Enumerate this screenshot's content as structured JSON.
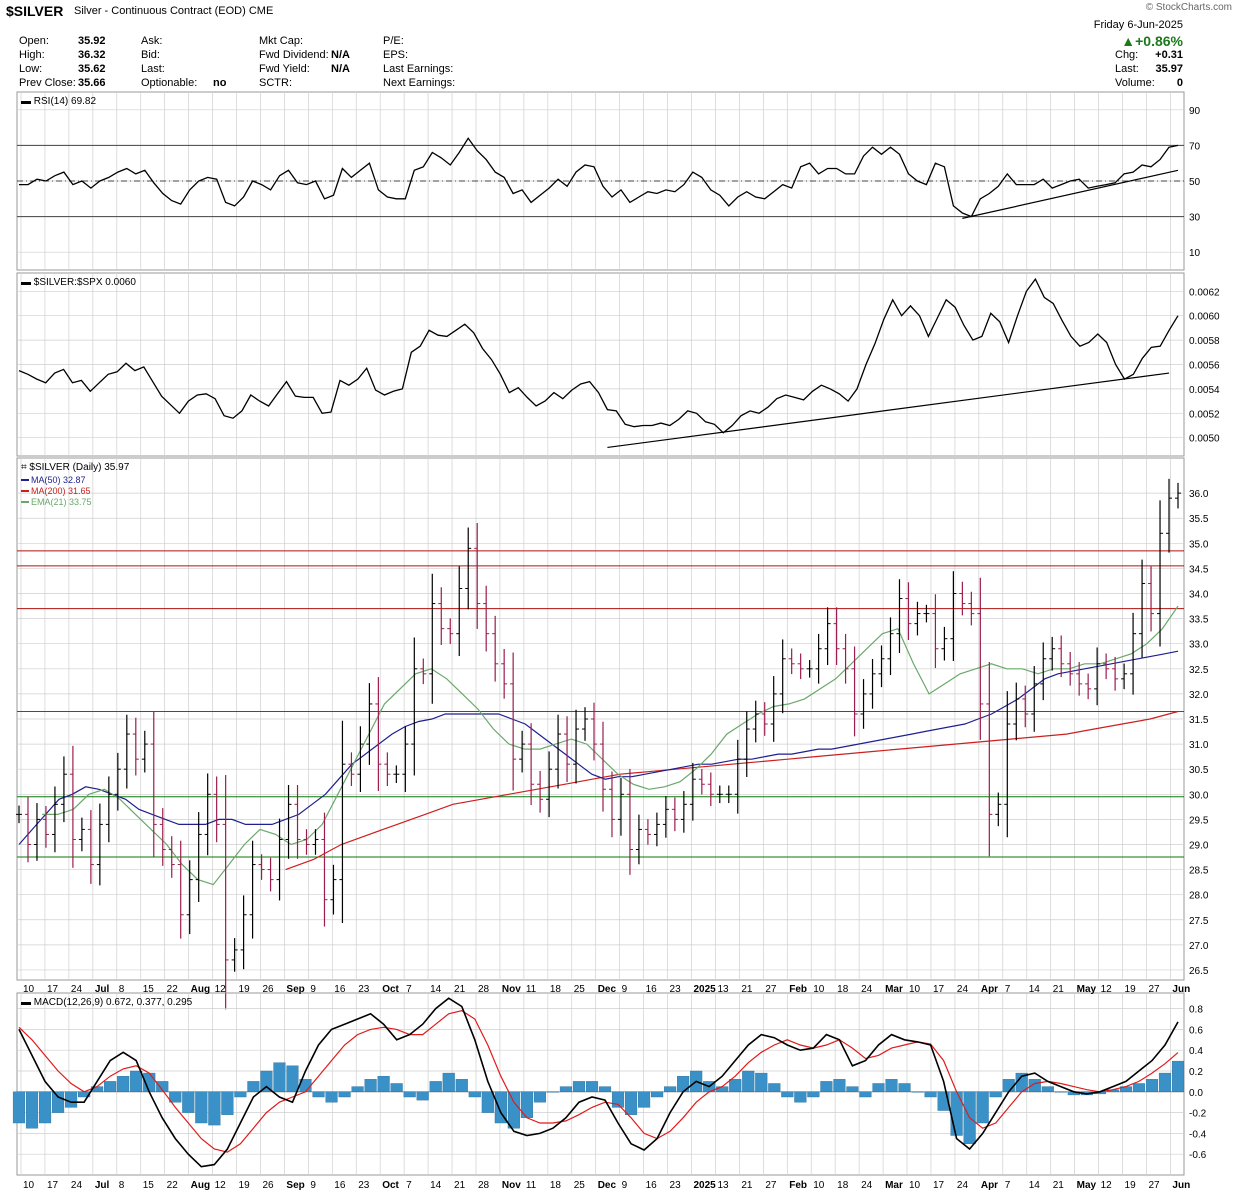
{
  "header": {
    "symbol": "$SILVER",
    "description": "Silver - Continuous Contract (EOD)",
    "exchange": "CME",
    "watermark": "© StockCharts.com",
    "date": "Friday  6-Jun-2025",
    "change_pct": "▲+0.86%"
  },
  "quote": {
    "col1": [
      {
        "label": "Open:",
        "value": "35.92"
      },
      {
        "label": "High:",
        "value": "36.32"
      },
      {
        "label": "Low:",
        "value": "35.62"
      },
      {
        "label": "Prev Close:",
        "value": "35.66"
      }
    ],
    "col2": [
      {
        "label": "Ask:",
        "value": ""
      },
      {
        "label": "Bid:",
        "value": ""
      },
      {
        "label": "Last:",
        "value": ""
      },
      {
        "label": "Optionable:",
        "value": "no"
      }
    ],
    "col3": [
      {
        "label": "Mkt Cap:",
        "value": ""
      },
      {
        "label": "Fwd Dividend:",
        "value": "N/A"
      },
      {
        "label": "Fwd Yield:",
        "value": "N/A"
      },
      {
        "label": "SCTR:",
        "value": ""
      }
    ],
    "col4": [
      {
        "label": "P/E:",
        "value": ""
      },
      {
        "label": "EPS:",
        "value": ""
      },
      {
        "label": "Last Earnings:",
        "value": ""
      },
      {
        "label": "Next Earnings:",
        "value": ""
      }
    ],
    "col5": [
      {
        "label": "Chg:",
        "value": "+0.31"
      },
      {
        "label": "Last:",
        "value": "35.97"
      },
      {
        "label": "Volume:",
        "value": "0"
      }
    ]
  },
  "colors": {
    "grid": "#cfcfcf",
    "price_bar_up": "#000000",
    "price_bar_down": "#9b1c4e",
    "ma50": "#1f1f8f",
    "ma200": "#cc1f1f",
    "ema21": "#6aa86a",
    "resistance": "#b01010",
    "support": "#0b7a0b",
    "macd_hist": "#3a91c8",
    "macd_signal": "#e01b1b",
    "trendline": "#000000"
  },
  "chart_data": [
    {
      "type": "line",
      "title": "RSI(14) 69.82",
      "ylim": [
        0,
        100
      ],
      "yticks": [
        90,
        70,
        50,
        30,
        10
      ],
      "reference_lines": [
        70,
        50,
        30
      ],
      "values": [
        48,
        48,
        51,
        50,
        53,
        55,
        48,
        50,
        46,
        50,
        52,
        55,
        57,
        54,
        56,
        49,
        43,
        39,
        37,
        45,
        50,
        52,
        51,
        38,
        36,
        41,
        50,
        48,
        45,
        53,
        56,
        49,
        48,
        50,
        40,
        42,
        57,
        52,
        56,
        60,
        45,
        41,
        40,
        40,
        56,
        58,
        66,
        63,
        59,
        66,
        74,
        67,
        62,
        55,
        52,
        43,
        45,
        38,
        42,
        46,
        51,
        47,
        55,
        59,
        58,
        47,
        41,
        45,
        38,
        41,
        44,
        43,
        45,
        44,
        48,
        55,
        52,
        45,
        42,
        36,
        41,
        44,
        41,
        40,
        44,
        48,
        46,
        58,
        60,
        54,
        57,
        57,
        54,
        54,
        64,
        69,
        65,
        69,
        65,
        54,
        50,
        48,
        60,
        58,
        36,
        32,
        30,
        40,
        43,
        47,
        54,
        48,
        48,
        48,
        51,
        46,
        48,
        50,
        51,
        46,
        47,
        48,
        49,
        54,
        55,
        59,
        58,
        62,
        69,
        70
      ],
      "trendline": {
        "from": [
          105,
          29
        ],
        "to": [
          129,
          56
        ]
      }
    },
    {
      "type": "line",
      "title": "$SILVER:$SPX 0.0060",
      "ylim": [
        0.00485,
        0.00635
      ],
      "yticks": [
        0.0062,
        0.006,
        0.0058,
        0.0056,
        0.0054,
        0.0052,
        0.005
      ],
      "ytick_labels": [
        "0.0062",
        "0.0060",
        "0.0058",
        "0.0056",
        "0.0054",
        "0.0052",
        "0.0050"
      ],
      "values": [
        0.00555,
        0.00552,
        0.00548,
        0.00545,
        0.00553,
        0.00556,
        0.00545,
        0.00547,
        0.00538,
        0.00545,
        0.00552,
        0.00554,
        0.00561,
        0.00555,
        0.00558,
        0.00546,
        0.00534,
        0.00527,
        0.0052,
        0.0053,
        0.00535,
        0.00536,
        0.00532,
        0.00518,
        0.00516,
        0.00522,
        0.00535,
        0.0053,
        0.00526,
        0.00536,
        0.00546,
        0.00534,
        0.00533,
        0.00533,
        0.0052,
        0.00521,
        0.00547,
        0.00543,
        0.00548,
        0.00557,
        0.00539,
        0.00535,
        0.00538,
        0.0054,
        0.0057,
        0.00575,
        0.00588,
        0.00584,
        0.00583,
        0.00588,
        0.00593,
        0.00586,
        0.00573,
        0.00564,
        0.00552,
        0.00537,
        0.00541,
        0.00533,
        0.00526,
        0.0053,
        0.00537,
        0.00532,
        0.00539,
        0.00544,
        0.00546,
        0.00537,
        0.00523,
        0.00522,
        0.00511,
        0.00509,
        0.0051,
        0.0051,
        0.00512,
        0.0051,
        0.00515,
        0.00522,
        0.0052,
        0.00513,
        0.00511,
        0.00504,
        0.0051,
        0.00518,
        0.00522,
        0.0052,
        0.00525,
        0.00532,
        0.00535,
        0.00533,
        0.00531,
        0.00538,
        0.00543,
        0.0054,
        0.00536,
        0.0053,
        0.0054,
        0.0056,
        0.00577,
        0.00597,
        0.00613,
        0.006,
        0.00608,
        0.006,
        0.00583,
        0.00598,
        0.00613,
        0.00607,
        0.00592,
        0.0058,
        0.00583,
        0.00602,
        0.00595,
        0.00578,
        0.006,
        0.0062,
        0.0063,
        0.00615,
        0.0061,
        0.00596,
        0.00583,
        0.00575,
        0.00578,
        0.00585,
        0.00578,
        0.0056,
        0.00548,
        0.00552,
        0.00565,
        0.00574,
        0.00575,
        0.00588,
        0.006
      ],
      "trendline": {
        "from": [
          66,
          0.00492
        ],
        "to": [
          129,
          0.00553
        ]
      }
    },
    {
      "type": "bar",
      "title": "$SILVER (Daily) 35.97",
      "legend": [
        "MA(50) 32.87",
        "MA(200) 31.65",
        "EMA(21) 33.75"
      ],
      "ylim": [
        26.3,
        36.7
      ],
      "yticks": [
        36.0,
        35.5,
        35.0,
        34.5,
        34.0,
        33.5,
        33.0,
        32.5,
        32.0,
        31.5,
        31.0,
        30.5,
        30.0,
        29.5,
        29.0,
        28.5,
        28.0,
        27.5,
        27.0,
        26.5
      ],
      "ytick_labels": [
        "36.0",
        "35.5",
        "35.0",
        "34.5",
        "34.0",
        "33.5",
        "33.0",
        "32.5",
        "32.0",
        "31.5",
        "31.0",
        "30.5",
        "30.0",
        "29.5",
        "29.0",
        "28.5",
        "28.0",
        "27.5",
        "27.0",
        "26.5"
      ],
      "resistance_lines": [
        34.85,
        34.55,
        33.7
      ],
      "support_lines": [
        31.65,
        29.95,
        28.75
      ],
      "close": [
        29.6,
        29.0,
        29.5,
        29.2,
        29.8,
        30.4,
        29.1,
        29.3,
        28.6,
        29.4,
        30.0,
        30.5,
        31.2,
        30.7,
        31.0,
        29.4,
        28.9,
        28.6,
        27.6,
        28.3,
        29.2,
        30.0,
        29.4,
        26.7,
        26.9,
        27.6,
        28.6,
        28.5,
        28.3,
        29.1,
        29.8,
        29.1,
        29.0,
        29.1,
        27.9,
        28.3,
        30.6,
        30.4,
        31.0,
        31.8,
        30.6,
        30.4,
        30.4,
        31.0,
        32.5,
        32.4,
        33.8,
        33.3,
        33.2,
        34.1,
        34.9,
        33.8,
        33.2,
        32.6,
        32.2,
        30.7,
        31.0,
        30.2,
        29.9,
        30.5,
        31.2,
        30.6,
        31.3,
        31.5,
        31.0,
        30.1,
        29.5,
        30.0,
        28.9,
        29.3,
        29.2,
        29.4,
        29.7,
        29.5,
        29.8,
        30.3,
        30.2,
        30.0,
        30.0,
        30.0,
        30.7,
        31.3,
        31.6,
        31.4,
        32.0,
        32.7,
        32.6,
        32.5,
        32.5,
        32.9,
        33.4,
        32.9,
        32.5,
        31.6,
        32.0,
        32.4,
        32.7,
        33.2,
        33.9,
        33.4,
        33.6,
        33.6,
        32.9,
        33.1,
        34.0,
        33.8,
        33.6,
        31.8,
        29.6,
        29.8,
        31.4,
        31.9,
        31.6,
        32.2,
        32.7,
        32.9,
        32.6,
        32.4,
        32.2,
        32.1,
        32.6,
        32.5,
        32.3,
        32.4,
        33.2,
        34.2,
        33.6,
        35.2,
        35.9,
        36.0
      ],
      "ma50": [
        29.0,
        29.3,
        29.6,
        29.9,
        30.0,
        30.15,
        30.1,
        30.0,
        29.9,
        29.7,
        29.6,
        29.5,
        29.4,
        29.4,
        29.4,
        29.5,
        29.5,
        29.4,
        29.4,
        29.4,
        29.5,
        29.6,
        29.8,
        30.0,
        30.3,
        30.6,
        30.8,
        31.0,
        31.2,
        31.35,
        31.45,
        31.5,
        31.6,
        31.6,
        31.6,
        31.6,
        31.6,
        31.5,
        31.4,
        31.2,
        31.0,
        30.8,
        30.6,
        30.4,
        30.3,
        30.35,
        30.35,
        30.4,
        30.45,
        30.5,
        30.55,
        30.6,
        30.6,
        30.65,
        30.7,
        30.7,
        30.75,
        30.8,
        30.8,
        30.85,
        30.9,
        30.9,
        30.95,
        31.0,
        31.05,
        31.1,
        31.15,
        31.2,
        31.25,
        31.3,
        31.35,
        31.4,
        31.5,
        31.6,
        31.75,
        31.9,
        32.1,
        32.3,
        32.4,
        32.45,
        32.5,
        32.55,
        32.6,
        32.65,
        32.7,
        32.75,
        32.8,
        32.85
      ],
      "ma200": [
        28.5,
        28.7,
        29.0,
        29.2,
        29.4,
        29.6,
        29.8,
        29.9,
        30.0,
        30.1,
        30.2,
        30.3,
        30.4,
        30.45,
        30.5,
        30.55,
        30.6,
        30.65,
        30.7,
        30.75,
        30.8,
        30.85,
        30.9,
        30.95,
        31.0,
        31.05,
        31.1,
        31.15,
        31.2,
        31.3,
        31.4,
        31.5,
        31.65
      ],
      "ema21": [
        29.6,
        29.6,
        29.7,
        30.0,
        30.1,
        29.9,
        29.6,
        29.3,
        29.0,
        28.6,
        28.3,
        28.2,
        28.6,
        29.0,
        29.3,
        29.2,
        29.0,
        29.1,
        29.4,
        30.0,
        30.6,
        31.2,
        31.8,
        32.1,
        32.4,
        32.5,
        32.3,
        32.0,
        31.7,
        31.3,
        31.0,
        30.9,
        30.9,
        31.0,
        31.1,
        31.0,
        30.7,
        30.4,
        30.2,
        30.1,
        30.15,
        30.25,
        30.5,
        30.8,
        31.2,
        31.4,
        31.6,
        31.75,
        31.8,
        31.9,
        32.1,
        32.3,
        32.6,
        32.9,
        33.2,
        33.3,
        32.6,
        32.0,
        32.2,
        32.4,
        32.5,
        32.6,
        32.5,
        32.5,
        32.4,
        32.5,
        32.5,
        32.6,
        32.6,
        32.7,
        32.8,
        33.0,
        33.3,
        33.75
      ]
    },
    {
      "type": "bar",
      "title": "MACD(12,26,9) 0.672, 0.377, 0.295",
      "ylim": [
        -0.8,
        0.95
      ],
      "yticks": [
        0.8,
        0.6,
        0.4,
        0.2,
        0.0,
        -0.2,
        -0.4,
        -0.6
      ],
      "ytick_labels": [
        "0.8",
        "0.6",
        "0.4",
        "0.2",
        "0.0",
        "-0.2",
        "-0.4",
        "-0.6"
      ],
      "macd": [
        0.6,
        0.35,
        0.1,
        -0.05,
        -0.1,
        -0.1,
        0.1,
        0.3,
        0.38,
        0.3,
        0.0,
        -0.25,
        -0.45,
        -0.6,
        -0.72,
        -0.7,
        -0.55,
        -0.3,
        -0.05,
        0.05,
        -0.05,
        -0.1,
        0.2,
        0.45,
        0.6,
        0.65,
        0.7,
        0.75,
        0.65,
        0.5,
        0.55,
        0.65,
        0.8,
        0.9,
        0.82,
        0.5,
        0.1,
        -0.2,
        -0.38,
        -0.42,
        -0.4,
        -0.35,
        -0.25,
        -0.1,
        -0.05,
        -0.08,
        -0.3,
        -0.5,
        -0.56,
        -0.45,
        -0.2,
        0.0,
        0.1,
        0.05,
        0.15,
        0.3,
        0.45,
        0.55,
        0.52,
        0.45,
        0.4,
        0.42,
        0.55,
        0.5,
        0.25,
        0.3,
        0.45,
        0.55,
        0.5,
        0.48,
        0.45,
        0.1,
        -0.45,
        -0.55,
        -0.4,
        -0.2,
        0.0,
        0.15,
        0.18,
        0.1,
        0.05,
        0.0,
        -0.02,
        0.0,
        0.05,
        0.1,
        0.2,
        0.3,
        0.45,
        0.672
      ],
      "signal": [
        0.62,
        0.5,
        0.35,
        0.2,
        0.08,
        0.0,
        0.05,
        0.15,
        0.22,
        0.25,
        0.18,
        0.02,
        -0.15,
        -0.3,
        -0.45,
        -0.55,
        -0.58,
        -0.5,
        -0.35,
        -0.2,
        -0.1,
        -0.05,
        0.0,
        0.15,
        0.3,
        0.45,
        0.55,
        0.6,
        0.62,
        0.6,
        0.55,
        0.55,
        0.65,
        0.75,
        0.78,
        0.7,
        0.45,
        0.15,
        -0.1,
        -0.25,
        -0.3,
        -0.3,
        -0.28,
        -0.22,
        -0.15,
        -0.1,
        -0.12,
        -0.25,
        -0.4,
        -0.45,
        -0.38,
        -0.25,
        -0.1,
        0.0,
        0.05,
        0.15,
        0.28,
        0.38,
        0.45,
        0.5,
        0.45,
        0.42,
        0.45,
        0.5,
        0.42,
        0.32,
        0.35,
        0.42,
        0.45,
        0.48,
        0.46,
        0.3,
        0.0,
        -0.25,
        -0.35,
        -0.3,
        -0.15,
        0.0,
        0.08,
        0.1,
        0.08,
        0.05,
        0.02,
        0.0,
        0.02,
        0.05,
        0.1,
        0.18,
        0.27,
        0.377
      ],
      "histogram": [
        -0.3,
        -0.35,
        -0.3,
        -0.2,
        -0.15,
        -0.05,
        0.05,
        0.1,
        0.15,
        0.2,
        0.18,
        0.1,
        -0.1,
        -0.2,
        -0.3,
        -0.32,
        -0.22,
        -0.05,
        0.1,
        0.2,
        0.28,
        0.25,
        0.12,
        -0.05,
        -0.1,
        -0.05,
        0.05,
        0.12,
        0.15,
        0.08,
        -0.05,
        -0.08,
        0.1,
        0.18,
        0.12,
        -0.05,
        -0.2,
        -0.3,
        -0.35,
        -0.25,
        -0.1,
        0.0,
        0.05,
        0.1,
        0.1,
        0.05,
        -0.15,
        -0.22,
        -0.15,
        -0.05,
        0.05,
        0.15,
        0.2,
        0.1,
        0.05,
        0.12,
        0.2,
        0.18,
        0.08,
        -0.05,
        -0.1,
        -0.05,
        0.1,
        0.12,
        0.05,
        -0.05,
        0.08,
        0.12,
        0.08,
        0.0,
        -0.05,
        -0.18,
        -0.42,
        -0.5,
        -0.3,
        -0.05,
        0.12,
        0.18,
        0.12,
        0.05,
        0.0,
        -0.03,
        -0.03,
        -0.02,
        0.02,
        0.05,
        0.08,
        0.12,
        0.18,
        0.295
      ]
    }
  ],
  "x_axis": {
    "labels": [
      "10",
      "17",
      "24",
      "Jul",
      "8",
      "15",
      "22",
      "Aug",
      "12",
      "19",
      "26",
      "Sep",
      "9",
      "16",
      "23",
      "Oct",
      "7",
      "14",
      "21",
      "28",
      "Nov",
      "11",
      "18",
      "25",
      "Dec",
      "9",
      "16",
      "23",
      "2025",
      "13",
      "21",
      "27",
      "Feb",
      "10",
      "18",
      "24",
      "Mar",
      "10",
      "17",
      "24",
      "Apr",
      "7",
      "14",
      "21",
      "May",
      "12",
      "19",
      "27",
      "Jun"
    ],
    "bold": [
      "Jul",
      "Aug",
      "Sep",
      "Oct",
      "Nov",
      "Dec",
      "2025",
      "Feb",
      "Mar",
      "Apr",
      "May",
      "Jun"
    ]
  }
}
